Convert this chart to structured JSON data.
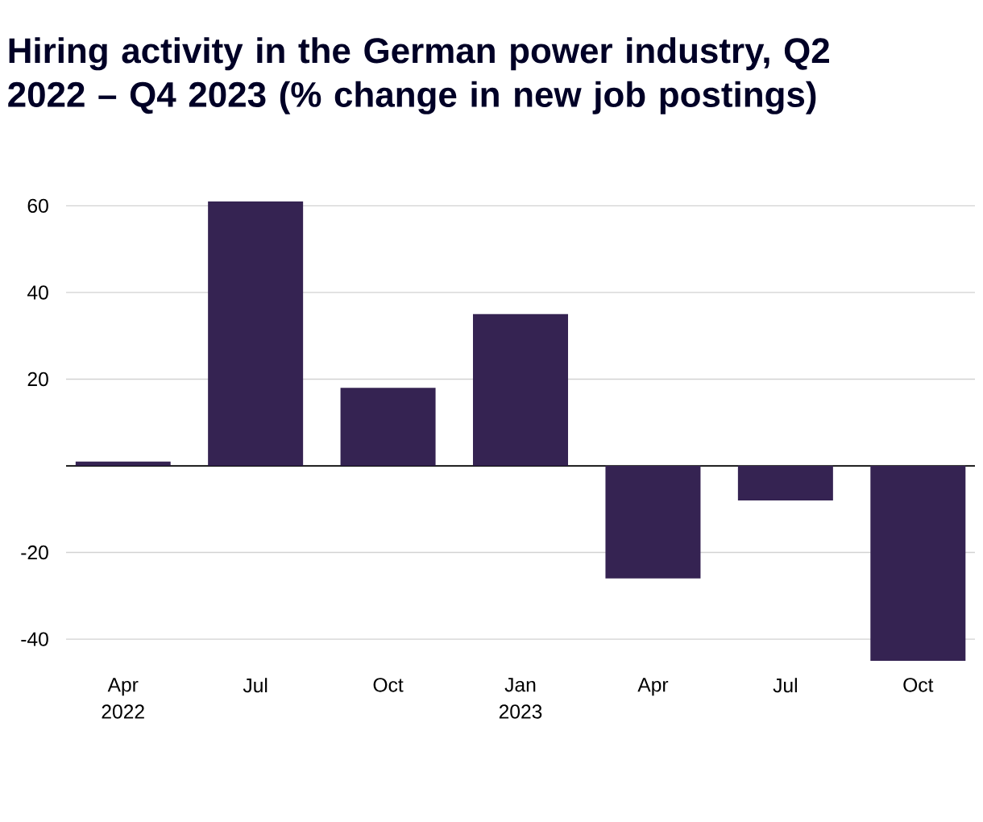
{
  "chart_data": {
    "type": "bar",
    "title": "Hiring activity in the German power industry, Q2 2022 – Q4 2023 (% change in new job postings)",
    "categories": [
      "Apr 2022",
      "Jul",
      "Oct",
      "Jan 2023",
      "Apr",
      "Jul",
      "Oct"
    ],
    "values": [
      1,
      61,
      18,
      35,
      -26,
      -8,
      -45
    ],
    "color": "#352352",
    "ylim": [
      -45,
      61
    ],
    "yticks": [
      -40,
      -20,
      20,
      40,
      60
    ],
    "grid": "y"
  }
}
